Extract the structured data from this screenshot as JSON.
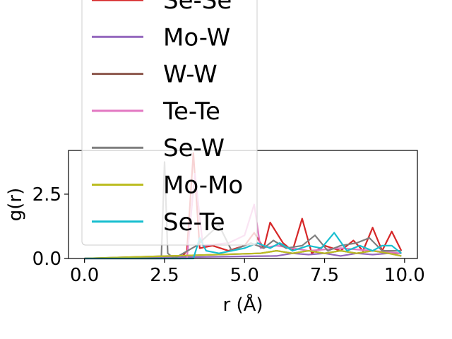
{
  "chart_data": {
    "type": "line",
    "xlabel": "r (Å)",
    "ylabel": "g(r)",
    "xlim": [
      -0.5,
      10.4
    ],
    "ylim": [
      0,
      4.2
    ],
    "xticks": [
      0.0,
      2.5,
      5.0,
      7.5,
      10.0
    ],
    "xtick_labels": [
      "0.0",
      "2.5",
      "5.0",
      "7.5",
      "10.0"
    ],
    "yticks": [
      0.0,
      2.5
    ],
    "ytick_labels": [
      "0.0",
      "2.5"
    ],
    "legend_position": "upper-left (overlapping plot)",
    "grid": false,
    "series": [
      {
        "name": "Se-Se",
        "color": "#d62728",
        "x": [
          0,
          3.0,
          3.2,
          3.4,
          3.6,
          4.0,
          4.5,
          5.0,
          5.3,
          5.6,
          5.8,
          6.2,
          6.5,
          6.8,
          7.1,
          7.5,
          8.0,
          8.4,
          8.7,
          9.0,
          9.3,
          9.6,
          9.9
        ],
        "y": [
          0,
          0,
          0.3,
          4.1,
          0.4,
          0.5,
          0.3,
          0.5,
          1.0,
          0.4,
          1.4,
          0.6,
          0.3,
          1.55,
          0.2,
          0.5,
          0.3,
          0.7,
          0.3,
          1.2,
          0.3,
          1.05,
          0.3
        ]
      },
      {
        "name": "Mo-W",
        "color": "#9467bd",
        "x": [
          0,
          6.0,
          6.5,
          7.0,
          7.5,
          8.0,
          8.5,
          9.0,
          9.5,
          9.9
        ],
        "y": [
          0,
          0.1,
          0.2,
          0.15,
          0.2,
          0.1,
          0.2,
          0.15,
          0.2,
          0.1
        ]
      },
      {
        "name": "W-W",
        "color": "#8c564b",
        "x": [
          0,
          5.5,
          6.0,
          6.5,
          7.0,
          7.5,
          8.0,
          8.5,
          9.0,
          9.5,
          9.9
        ],
        "y": [
          0,
          0.2,
          0.3,
          0.2,
          0.3,
          0.2,
          0.3,
          0.2,
          0.3,
          0.2,
          0.2
        ]
      },
      {
        "name": "Te-Te",
        "color": "#e377c2",
        "x": [
          0,
          3.2,
          3.45,
          3.7,
          4.5,
          5.0,
          5.3,
          5.5,
          6.0,
          7.0,
          8.0,
          9.0,
          9.9
        ],
        "y": [
          0,
          0,
          3.3,
          0.5,
          0.6,
          0.9,
          2.1,
          0.4,
          0.5,
          0.3,
          0.4,
          0.3,
          0.2
        ]
      },
      {
        "name": "Se-W",
        "color": "#7f7f7f",
        "x": [
          0,
          2.4,
          2.5,
          2.6,
          2.8,
          3.5,
          4.2,
          4.6,
          5.2,
          5.6,
          5.9,
          6.3,
          6.8,
          7.2,
          7.6,
          8.0,
          8.5,
          8.9,
          9.3,
          9.9
        ],
        "y": [
          0,
          0,
          3.75,
          0.2,
          0,
          0.5,
          1.3,
          0.3,
          0.6,
          0.4,
          0.7,
          0.4,
          0.5,
          0.9,
          0.3,
          0.5,
          0.6,
          0.8,
          0.3,
          0.3
        ]
      },
      {
        "name": "Mo-Mo",
        "color": "#bcbd22",
        "x": [
          0,
          5.5,
          6.0,
          6.5,
          7.0,
          7.5,
          8.0,
          8.5,
          9.0,
          9.5,
          9.9
        ],
        "y": [
          0,
          0.2,
          0.3,
          0.2,
          0.3,
          0.2,
          0.3,
          0.2,
          0.3,
          0.2,
          0.1
        ]
      },
      {
        "name": "Se-Te",
        "color": "#17becf",
        "x": [
          0,
          3.4,
          3.6,
          3.8,
          4.2,
          5.0,
          5.4,
          5.8,
          6.1,
          6.5,
          7.0,
          7.4,
          7.8,
          8.2,
          8.6,
          9.0,
          9.3,
          9.6,
          9.9
        ],
        "y": [
          0,
          0,
          0.8,
          0.3,
          0.2,
          0.4,
          0.6,
          0.4,
          0.6,
          0.3,
          0.5,
          0.4,
          1.0,
          0.3,
          0.5,
          0.3,
          0.5,
          0.5,
          0.2
        ]
      }
    ]
  },
  "legend": {
    "visible_entries": [
      "Se-Se",
      "Mo-W",
      "W-W",
      "Te-Te",
      "Se-W",
      "Mo-Mo",
      "Se-Te"
    ]
  }
}
